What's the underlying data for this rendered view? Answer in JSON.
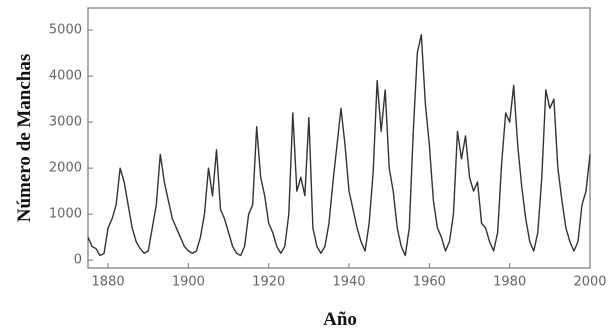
{
  "chart_data": {
    "type": "line",
    "x_label": "Año",
    "y_label": "Número de Manchas",
    "x": [
      1875,
      1876,
      1877,
      1878,
      1879,
      1880,
      1881,
      1882,
      1883,
      1884,
      1885,
      1886,
      1887,
      1888,
      1889,
      1890,
      1891,
      1892,
      1893,
      1894,
      1895,
      1896,
      1897,
      1898,
      1899,
      1900,
      1901,
      1902,
      1903,
      1904,
      1905,
      1906,
      1907,
      1908,
      1909,
      1910,
      1911,
      1912,
      1913,
      1914,
      1915,
      1916,
      1917,
      1918,
      1919,
      1920,
      1921,
      1922,
      1923,
      1924,
      1925,
      1926,
      1927,
      1928,
      1929,
      1930,
      1931,
      1932,
      1933,
      1934,
      1935,
      1936,
      1937,
      1938,
      1939,
      1940,
      1941,
      1942,
      1943,
      1944,
      1945,
      1946,
      1947,
      1948,
      1949,
      1950,
      1951,
      1952,
      1953,
      1954,
      1955,
      1956,
      1957,
      1958,
      1959,
      1960,
      1961,
      1962,
      1963,
      1964,
      1965,
      1966,
      1967,
      1968,
      1969,
      1970,
      1971,
      1972,
      1973,
      1974,
      1975,
      1976,
      1977,
      1978,
      1979,
      1980,
      1981,
      1982,
      1983,
      1984,
      1985,
      1986,
      1987,
      1988,
      1989,
      1990,
      1991,
      1992,
      1993,
      1994,
      1995,
      1996,
      1997,
      1998,
      1999,
      2000
    ],
    "series": [
      {
        "color": "#333333",
        "values": [
          500,
          300,
          250,
          100,
          150,
          700,
          900,
          1200,
          2000,
          1700,
          1200,
          700,
          400,
          250,
          150,
          200,
          700,
          1200,
          2300,
          1700,
          1300,
          900,
          700,
          500,
          300,
          200,
          150,
          200,
          500,
          1000,
          2000,
          1400,
          2400,
          1100,
          900,
          600,
          300,
          150,
          100,
          300,
          1000,
          1200,
          2900,
          1800,
          1400,
          800,
          600,
          300,
          150,
          300,
          1000,
          3200,
          1500,
          1800,
          1400,
          3100,
          700,
          300,
          150,
          300,
          800,
          1700,
          2500,
          3300,
          2500,
          1500,
          1100,
          700,
          400,
          200,
          800,
          1900,
          3900,
          2800,
          3700,
          2000,
          1500,
          700,
          300,
          100,
          700,
          2800,
          4500,
          4900,
          3400,
          2500,
          1300,
          700,
          500,
          200,
          400,
          1000,
          2800,
          2200,
          2700,
          1800,
          1500,
          1700,
          800,
          700,
          400,
          200,
          600,
          2100,
          3200,
          3000,
          3800,
          2500,
          1600,
          900,
          400,
          200,
          600,
          1800,
          3700,
          3300,
          3500,
          2000,
          1300,
          700,
          400,
          200,
          400,
          1200,
          1500,
          2300
        ]
      }
    ],
    "xlim": [
      1875,
      2000
    ],
    "ylim": [
      -170,
      5480
    ],
    "xticks": [
      1880,
      1900,
      1920,
      1940,
      1960,
      1980,
      2000
    ],
    "yticks": [
      0,
      1000,
      2000,
      3000,
      4000,
      5000
    ]
  }
}
